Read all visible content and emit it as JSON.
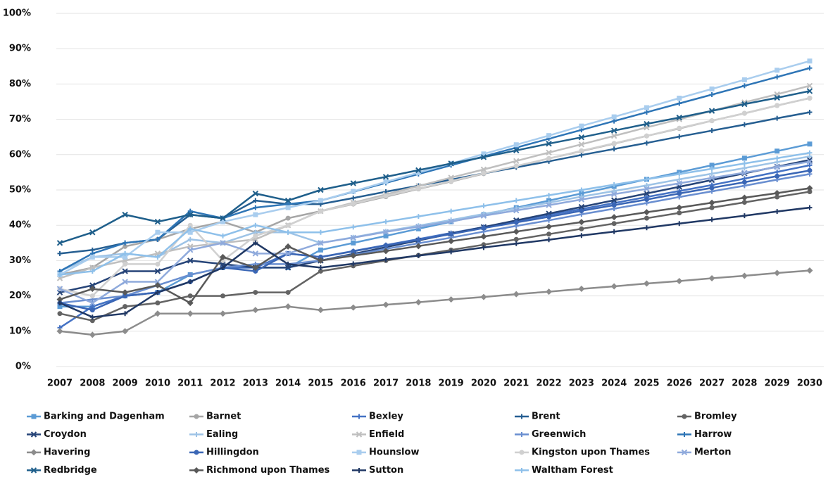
{
  "chart_data": {
    "type": "line",
    "categories": [
      "2007",
      "2008",
      "2009",
      "2010",
      "2011",
      "2012",
      "2013",
      "2014",
      "2015",
      "2016",
      "2017",
      "2018",
      "2019",
      "2020",
      "2021",
      "2022",
      "2023",
      "2024",
      "2025",
      "2026",
      "2027",
      "2028",
      "2029",
      "2030"
    ],
    "ylim": [
      0,
      100
    ],
    "yticks": [
      {
        "value": 0,
        "label": "0%"
      },
      {
        "value": 10,
        "label": "10%"
      },
      {
        "value": 20,
        "label": "20%"
      },
      {
        "value": 30,
        "label": "30%"
      },
      {
        "value": 40,
        "label": "40%"
      },
      {
        "value": 50,
        "label": "50%"
      },
      {
        "value": 60,
        "label": "60%"
      },
      {
        "value": 70,
        "label": "70%"
      },
      {
        "value": 80,
        "label": "80%"
      },
      {
        "value": 90,
        "label": "90%"
      },
      {
        "value": 100,
        "label": "100%"
      }
    ],
    "grid": true,
    "series": [
      {
        "name": "Barking and Dagenham",
        "color": "#5b9bd5",
        "marker": "square",
        "values": [
          17,
          17,
          20,
          21,
          26,
          28,
          28,
          28,
          33,
          35,
          37,
          39,
          41,
          43,
          45,
          47,
          49,
          51,
          53,
          55,
          57,
          59,
          61,
          63
        ]
      },
      {
        "name": "Barnet",
        "color": "#a5a5a5",
        "marker": "circle",
        "values": [
          26,
          28,
          34,
          36,
          39,
          41,
          38,
          42,
          44,
          46,
          48.1,
          50.3,
          52.4,
          54.6,
          56.7,
          58.9,
          61,
          63.1,
          65.3,
          67.4,
          69.6,
          71.7,
          73.9,
          76
        ]
      },
      {
        "name": "Bexley",
        "color": "#4472c4",
        "marker": "plus",
        "values": [
          11,
          17,
          20,
          21,
          24,
          28,
          28,
          32,
          31,
          32.7,
          34.4,
          36.1,
          37.8,
          39.5,
          41.2,
          42.9,
          44.6,
          46.3,
          48,
          49.7,
          51.4,
          53.2,
          55.1,
          57
        ]
      },
      {
        "name": "Brent",
        "color": "#255e91",
        "marker": "plus",
        "values": [
          32,
          33,
          35,
          36,
          43,
          42,
          47,
          46,
          46,
          47.7,
          49.5,
          51.2,
          52.9,
          54.7,
          56.4,
          58.1,
          59.9,
          61.6,
          63.3,
          65.1,
          66.8,
          68.5,
          70.3,
          72
        ]
      },
      {
        "name": "Bromley",
        "color": "#636363",
        "marker": "circle",
        "values": [
          15,
          13,
          17,
          18,
          20,
          20,
          21,
          21,
          27,
          28.5,
          30,
          31.5,
          33,
          34.5,
          36,
          37.5,
          39,
          40.5,
          42,
          43.5,
          45,
          46.5,
          48,
          49.5
        ]
      },
      {
        "name": "Croydon",
        "color": "#264478",
        "marker": "x",
        "values": [
          21,
          23,
          27,
          27,
          30,
          29,
          28,
          28,
          30,
          31.9,
          33.8,
          35.7,
          37.6,
          39.5,
          41.4,
          43.3,
          45.2,
          47.1,
          49,
          50.9,
          52.8,
          54.7,
          56.6,
          58.5
        ]
      },
      {
        "name": "Ealing",
        "color": "#9dc3e6",
        "marker": "plus",
        "values": [
          27,
          31,
          32,
          31,
          36,
          35,
          38,
          38,
          35,
          36.6,
          38.3,
          39.9,
          41.5,
          43.2,
          44.8,
          46.4,
          48.1,
          49.7,
          51.3,
          53,
          54.6,
          56.2,
          57.9,
          59.5
        ]
      },
      {
        "name": "Enfield",
        "color": "#bfbfbf",
        "marker": "x",
        "values": [
          25,
          28,
          30,
          32,
          34,
          35,
          36,
          40,
          44,
          46.4,
          48.7,
          51.1,
          53.5,
          55.8,
          58.2,
          60.6,
          62.9,
          65.3,
          67.7,
          70,
          72.4,
          74.8,
          77.1,
          79.5
        ]
      },
      {
        "name": "Greenwich",
        "color": "#698ed0",
        "marker": "plus",
        "values": [
          18,
          19,
          20,
          23,
          26,
          28,
          29,
          29,
          30,
          31.6,
          33.3,
          34.9,
          36.5,
          38.2,
          39.8,
          41.4,
          43.1,
          44.7,
          46.3,
          48,
          49.6,
          51.2,
          52.9,
          54.5
        ]
      },
      {
        "name": "Harrow",
        "color": "#2e75b6",
        "marker": "plus",
        "values": [
          27,
          32,
          35,
          36,
          44,
          42,
          45,
          46,
          47,
          49.5,
          52,
          54.5,
          57,
          59.5,
          62,
          64.5,
          67,
          69.5,
          72,
          74.5,
          77,
          79.5,
          82,
          84.5
        ]
      },
      {
        "name": "Havering",
        "color": "#8c8c8c",
        "marker": "diamond",
        "values": [
          10,
          9,
          10,
          15,
          15,
          15,
          16,
          17,
          16,
          16.7,
          17.5,
          18.2,
          19,
          19.7,
          20.5,
          21.2,
          22,
          22.7,
          23.5,
          24.2,
          25,
          25.7,
          26.5,
          27.2
        ]
      },
      {
        "name": "Hillingdon",
        "color": "#3a66b5",
        "marker": "circle",
        "values": [
          18,
          16,
          20,
          21,
          24,
          28,
          27,
          32,
          31,
          32.6,
          34.3,
          35.9,
          37.5,
          39.2,
          40.8,
          42.4,
          44.1,
          45.7,
          47.3,
          49,
          50.6,
          52.2,
          53.9,
          55.5
        ]
      },
      {
        "name": "Hounslow",
        "color": "#a9cdee",
        "marker": "square",
        "values": [
          26,
          31,
          31,
          38,
          38,
          41,
          43,
          45,
          47,
          49.6,
          52.3,
          54.9,
          57.5,
          60.2,
          62.8,
          65.4,
          68.1,
          70.7,
          73.3,
          76,
          78.6,
          81.2,
          83.9,
          86.5
        ]
      },
      {
        "name": "Kingston upon Thames",
        "color": "#d0d0d0",
        "marker": "circle",
        "values": [
          22,
          20,
          29,
          29,
          40,
          30,
          37,
          40,
          44,
          46.1,
          48.3,
          50.4,
          52.5,
          54.7,
          56.8,
          58.9,
          61.1,
          63.2,
          65.3,
          67.5,
          69.6,
          71.7,
          73.9,
          76
        ]
      },
      {
        "name": "Merton",
        "color": "#8faadc",
        "marker": "x",
        "values": [
          22,
          18,
          24,
          24,
          33,
          35,
          32,
          32,
          35,
          36.5,
          38.1,
          39.6,
          41.1,
          42.7,
          44.2,
          45.7,
          47.3,
          48.8,
          50.3,
          51.9,
          53.4,
          54.9,
          56.5,
          58
        ]
      },
      {
        "name": "Redbridge",
        "color": "#1f5f8b",
        "marker": "x",
        "values": [
          35,
          38,
          43,
          41,
          43,
          42,
          49,
          47,
          50,
          51.9,
          53.7,
          55.6,
          57.5,
          59.3,
          61.2,
          63.1,
          64.9,
          66.8,
          68.7,
          70.5,
          72.4,
          74.3,
          76.1,
          78
        ]
      },
      {
        "name": "Richmond upon Thames",
        "color": "#595959",
        "marker": "diamond",
        "values": [
          19,
          22,
          21,
          23,
          18,
          31,
          28,
          34,
          30,
          31.4,
          32.7,
          34.1,
          35.5,
          36.8,
          38.2,
          39.6,
          40.9,
          42.3,
          43.7,
          45,
          46.4,
          47.8,
          49.1,
          50.5
        ]
      },
      {
        "name": "Sutton",
        "color": "#203864",
        "marker": "plus",
        "values": [
          18,
          14,
          15,
          21,
          24,
          28,
          35,
          29,
          28,
          29.1,
          30.3,
          31.4,
          32.5,
          33.7,
          34.8,
          35.9,
          37.1,
          38.2,
          39.3,
          40.5,
          41.6,
          42.7,
          43.9,
          45
        ]
      },
      {
        "name": "Waltham Forest",
        "color": "#8ec0ea",
        "marker": "plus",
        "values": [
          26,
          27,
          32,
          31,
          39,
          37,
          40,
          38,
          38,
          39.5,
          41,
          42.5,
          44,
          45.5,
          47,
          48.5,
          50,
          51.5,
          53,
          54.5,
          56,
          57.5,
          59,
          60.5
        ]
      }
    ]
  }
}
